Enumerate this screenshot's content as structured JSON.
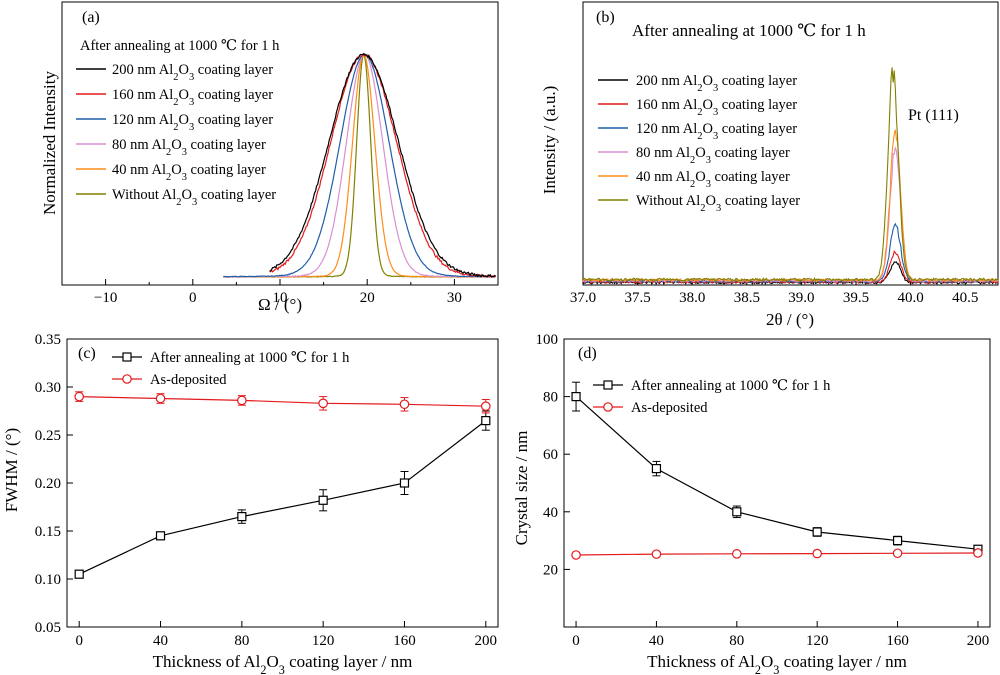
{
  "chart_data": [
    {
      "panel": "(a)",
      "type": "line",
      "xlabel": "Ω / (°)",
      "ylabel": "Normalized Intensity",
      "xlim": [
        -15,
        35
      ],
      "xticks": [
        "−10",
        "0",
        "10",
        "20",
        "30"
      ],
      "xtick_values": [
        -10,
        0,
        10,
        20,
        30
      ],
      "legend_title": "After annealing at 1000 ℃ for 1 h",
      "legend_placement": "upper-left",
      "series": [
        {
          "name": "200 nm Al₂O₃ coating layer",
          "color": "#000000",
          "center": 19.6,
          "fwhm": 9.4,
          "x_start": 8.8,
          "x_end": 34.8
        },
        {
          "name": "160 nm Al₂O₃ coating layer",
          "color": "#e41a1c",
          "center": 19.6,
          "fwhm": 8.9,
          "x_start": 8.8,
          "x_end": 34.8
        },
        {
          "name": "120 nm Al₂O₃ coating layer",
          "color": "#1f5fa8",
          "center": 19.7,
          "fwhm": 6.6,
          "x_start": 3.5,
          "x_end": 34.8
        },
        {
          "name": "80 nm Al₂O₃ coating layer",
          "color": "#d98fd1",
          "center": 19.7,
          "fwhm": 4.9,
          "x_start": 3.5,
          "x_end": 34.8
        },
        {
          "name": "40 nm Al₂O₃ coating layer",
          "color": "#ff8c1a",
          "center": 19.6,
          "fwhm": 3.0,
          "x_start": 3.5,
          "x_end": 34.8
        },
        {
          "name": "Without Al₂O₃ coating layer",
          "color": "#808000",
          "center": 19.6,
          "fwhm": 1.9,
          "x_start": 3.5,
          "x_end": 34.8
        }
      ]
    },
    {
      "panel": "(b)",
      "type": "line",
      "xlabel": "2θ / (°)",
      "ylabel": "Intensity / (a.u.)",
      "xlim": [
        37.0,
        40.8
      ],
      "xticks": [
        "37.0",
        "37.5",
        "38.0",
        "38.5",
        "39.0",
        "39.5",
        "40.0",
        "40.5"
      ],
      "xtick_values": [
        37.0,
        37.5,
        38.0,
        38.5,
        39.0,
        39.5,
        40.0,
        40.5
      ],
      "title": "After annealing at 1000 ℃ for 1 h",
      "annotation": "Pt (111)",
      "legend_placement": "upper-left",
      "series": [
        {
          "name": "200 nm Al₂O₃ coating layer",
          "color": "#000000",
          "peak_position": 39.86,
          "relative_peak_height": 0.1
        },
        {
          "name": "160 nm Al₂O₃ coating layer",
          "color": "#e41a1c",
          "peak_position": 39.86,
          "relative_peak_height": 0.14
        },
        {
          "name": "120 nm Al₂O₃ coating layer",
          "color": "#1f5fa8",
          "peak_position": 39.86,
          "relative_peak_height": 0.27
        },
        {
          "name": "80 nm Al₂O₃ coating layer",
          "color": "#d98fd1",
          "peak_position": 39.86,
          "relative_peak_height": 0.64
        },
        {
          "name": "40 nm Al₂O₃ coating layer",
          "color": "#ff8c1a",
          "peak_position": 39.86,
          "relative_peak_height": 0.71
        },
        {
          "name": "Without Al₂O₃ coating layer",
          "color": "#808000",
          "peak_position": 39.84,
          "relative_peak_height": 0.99
        }
      ]
    },
    {
      "panel": "(c)",
      "type": "line",
      "xlabel": "Thickness of Al₂O₃ coating layer / nm",
      "ylabel": "FWHM / (°)",
      "xlim": [
        -6,
        206
      ],
      "ylim": [
        0.05,
        0.35
      ],
      "x": [
        0,
        40,
        80,
        120,
        160,
        200
      ],
      "xticks": [
        "0",
        "40",
        "80",
        "120",
        "160",
        "200"
      ],
      "yticks": [
        "0.05",
        "0.10",
        "0.15",
        "0.20",
        "0.25",
        "0.30",
        "0.35"
      ],
      "ytick_values": [
        0.05,
        0.1,
        0.15,
        0.2,
        0.25,
        0.3,
        0.35
      ],
      "legend_placement": "top-left",
      "series": [
        {
          "name": "After annealing at 1000 ℃ for 1 h",
          "color": "#000000",
          "marker": "square",
          "values": [
            0.105,
            0.145,
            0.165,
            0.182,
            0.2,
            0.265
          ],
          "errors": [
            0.004,
            0.004,
            0.007,
            0.011,
            0.012,
            0.01
          ]
        },
        {
          "name": "As-deposited",
          "color": "#e41a1c",
          "marker": "circle",
          "values": [
            0.29,
            0.288,
            0.286,
            0.283,
            0.282,
            0.28
          ],
          "errors": [
            0.005,
            0.005,
            0.005,
            0.007,
            0.007,
            0.007
          ]
        }
      ]
    },
    {
      "panel": "(d)",
      "type": "line",
      "xlabel": "Thickness of Al₂O₃ coating layer / nm",
      "ylabel": "Crystal size / nm",
      "xlim": [
        -6,
        206
      ],
      "ylim": [
        0,
        100
      ],
      "x": [
        0,
        40,
        80,
        120,
        160,
        200
      ],
      "xticks": [
        "0",
        "40",
        "80",
        "120",
        "160",
        "200"
      ],
      "yticks": [
        "20",
        "40",
        "60",
        "80",
        "100"
      ],
      "ytick_values": [
        20,
        40,
        60,
        80,
        100
      ],
      "legend_placement": "top-left",
      "series": [
        {
          "name": "After annealing at 1000 ℃ for 1 h",
          "color": "#000000",
          "marker": "square",
          "values": [
            80,
            55,
            40,
            33,
            30,
            27
          ],
          "errors": [
            5,
            2.5,
            2,
            1.5,
            1.5,
            1.2
          ]
        },
        {
          "name": "As-deposited",
          "color": "#e41a1c",
          "marker": "circle",
          "values": [
            25,
            25.3,
            25.4,
            25.5,
            25.6,
            25.7
          ],
          "errors": [
            0.6,
            0.6,
            0.6,
            0.6,
            0.6,
            0.6
          ]
        }
      ]
    }
  ]
}
